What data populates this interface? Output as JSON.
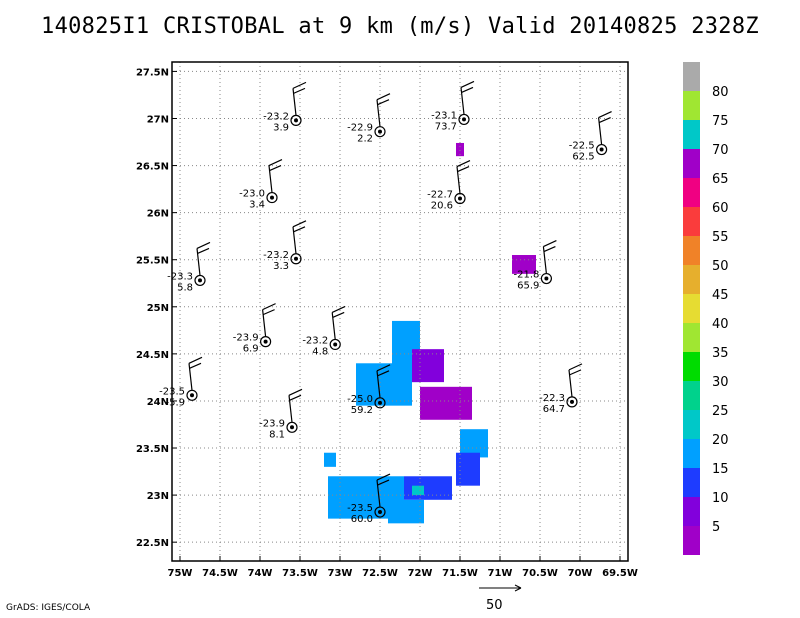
{
  "title": "140825I1 CRISTOBAL at 9 km (m/s) Valid 20140825 2328Z",
  "credit": "GrADS: IGES/COLA",
  "reference_vector_label": "50",
  "map": {
    "lon_range": [
      -75.1,
      -69.4
    ],
    "lat_range": [
      22.3,
      27.6
    ],
    "lon_ticks": [
      {
        "v": -75,
        "label": "75W"
      },
      {
        "v": -74.5,
        "label": "74.5W"
      },
      {
        "v": -74,
        "label": "74W"
      },
      {
        "v": -73.5,
        "label": "73.5W"
      },
      {
        "v": -73,
        "label": "73W"
      },
      {
        "v": -72.5,
        "label": "72.5W"
      },
      {
        "v": -72,
        "label": "72W"
      },
      {
        "v": -71.5,
        "label": "71.5W"
      },
      {
        "v": -71,
        "label": "71W"
      },
      {
        "v": -70.5,
        "label": "70.5W"
      },
      {
        "v": -70,
        "label": "70W"
      },
      {
        "v": -69.5,
        "label": "69.5W"
      }
    ],
    "lat_ticks": [
      {
        "v": 22.5,
        "label": "22.5N"
      },
      {
        "v": 23,
        "label": "23N"
      },
      {
        "v": 23.5,
        "label": "23.5N"
      },
      {
        "v": 24,
        "label": "24N"
      },
      {
        "v": 24.5,
        "label": "24.5N"
      },
      {
        "v": 25,
        "label": "25N"
      },
      {
        "v": 25.5,
        "label": "25.5N"
      },
      {
        "v": 26,
        "label": "26N"
      },
      {
        "v": 26.5,
        "label": "26.5N"
      },
      {
        "v": 27,
        "label": "27N"
      },
      {
        "v": 27.5,
        "label": "27.5N"
      }
    ],
    "grid": true
  },
  "colorbar": {
    "levels": [
      "5",
      "10",
      "15",
      "20",
      "25",
      "30",
      "35",
      "40",
      "45",
      "50",
      "55",
      "60",
      "65",
      "70",
      "75",
      "80"
    ],
    "colors": [
      "#a000c8",
      "#8200dc",
      "#1e3cff",
      "#00a0ff",
      "#00c8c8",
      "#00d28c",
      "#00dc00",
      "#a0e632",
      "#e6dc32",
      "#e6af2d",
      "#f08228",
      "#fa3c3c",
      "#f00082",
      "#a000c8",
      "#00c8c8",
      "#a0e632",
      "#aaaaaa"
    ]
  },
  "observations": [
    {
      "lon": -73.55,
      "lat": 26.98,
      "temp": "-23.2",
      "value": "3.9"
    },
    {
      "lon": -72.5,
      "lat": 26.86,
      "temp": "-22.9",
      "value": "2.2"
    },
    {
      "lon": -71.45,
      "lat": 26.99,
      "temp": "-23.1",
      "value": "73.7"
    },
    {
      "lon": -69.73,
      "lat": 26.67,
      "temp": "-22.5",
      "value": "62.5"
    },
    {
      "lon": -73.85,
      "lat": 26.16,
      "temp": "-23.0",
      "value": "3.4"
    },
    {
      "lon": -71.5,
      "lat": 26.15,
      "temp": "-22.7",
      "value": "20.6"
    },
    {
      "lon": -73.55,
      "lat": 25.51,
      "temp": "-23.2",
      "value": "3.3"
    },
    {
      "lon": -74.75,
      "lat": 25.28,
      "temp": "-23.3",
      "value": "5.8"
    },
    {
      "lon": -70.42,
      "lat": 25.3,
      "temp": "-21.8",
      "value": "65.9"
    },
    {
      "lon": -73.93,
      "lat": 24.63,
      "temp": "-23.9",
      "value": "6.9"
    },
    {
      "lon": -73.06,
      "lat": 24.6,
      "temp": "-23.2",
      "value": "4.8"
    },
    {
      "lon": -74.85,
      "lat": 24.06,
      "temp": "-23.5",
      "value": "-5.9"
    },
    {
      "lon": -72.5,
      "lat": 23.98,
      "temp": "-25.0",
      "value": "59.2"
    },
    {
      "lon": -70.1,
      "lat": 23.99,
      "temp": "-22.3",
      "value": "64.7"
    },
    {
      "lon": -73.6,
      "lat": 23.72,
      "temp": "-23.9",
      "value": "8.1"
    },
    {
      "lon": -72.5,
      "lat": 22.82,
      "temp": "-23.5",
      "value": "60.0"
    }
  ],
  "radar_patches": [
    {
      "lon0": -71.55,
      "lat0": 26.6,
      "lon1": -71.45,
      "lat1": 26.74,
      "level": 13
    },
    {
      "lon0": -70.85,
      "lat0": 25.35,
      "lon1": -70.55,
      "lat1": 25.55,
      "level": 13
    },
    {
      "lon0": -72.35,
      "lat0": 24.2,
      "lon1": -72.0,
      "lat1": 24.85,
      "level": 3
    },
    {
      "lon0": -72.1,
      "lat0": 24.2,
      "lon1": -71.7,
      "lat1": 24.55,
      "level": 1
    },
    {
      "lon0": -72.8,
      "lat0": 23.95,
      "lon1": -72.1,
      "lat1": 24.4,
      "level": 3
    },
    {
      "lon0": -72.0,
      "lat0": 23.8,
      "lon1": -71.35,
      "lat1": 24.15,
      "level": 13
    },
    {
      "lon0": -71.5,
      "lat0": 23.4,
      "lon1": -71.15,
      "lat1": 23.7,
      "level": 3
    },
    {
      "lon0": -71.55,
      "lat0": 23.1,
      "lon1": -71.25,
      "lat1": 23.45,
      "level": 2
    },
    {
      "lon0": -72.2,
      "lat0": 22.95,
      "lon1": -71.6,
      "lat1": 23.2,
      "level": 2
    },
    {
      "lon0": -73.15,
      "lat0": 22.75,
      "lon1": -72.2,
      "lat1": 23.2,
      "level": 3
    },
    {
      "lon0": -72.4,
      "lat0": 22.7,
      "lon1": -71.95,
      "lat1": 22.95,
      "level": 3
    },
    {
      "lon0": -73.2,
      "lat0": 23.3,
      "lon1": -73.05,
      "lat1": 23.45,
      "level": 3
    },
    {
      "lon0": -72.1,
      "lat0": 23.0,
      "lon1": -71.95,
      "lat1": 23.1,
      "level": 4
    }
  ]
}
